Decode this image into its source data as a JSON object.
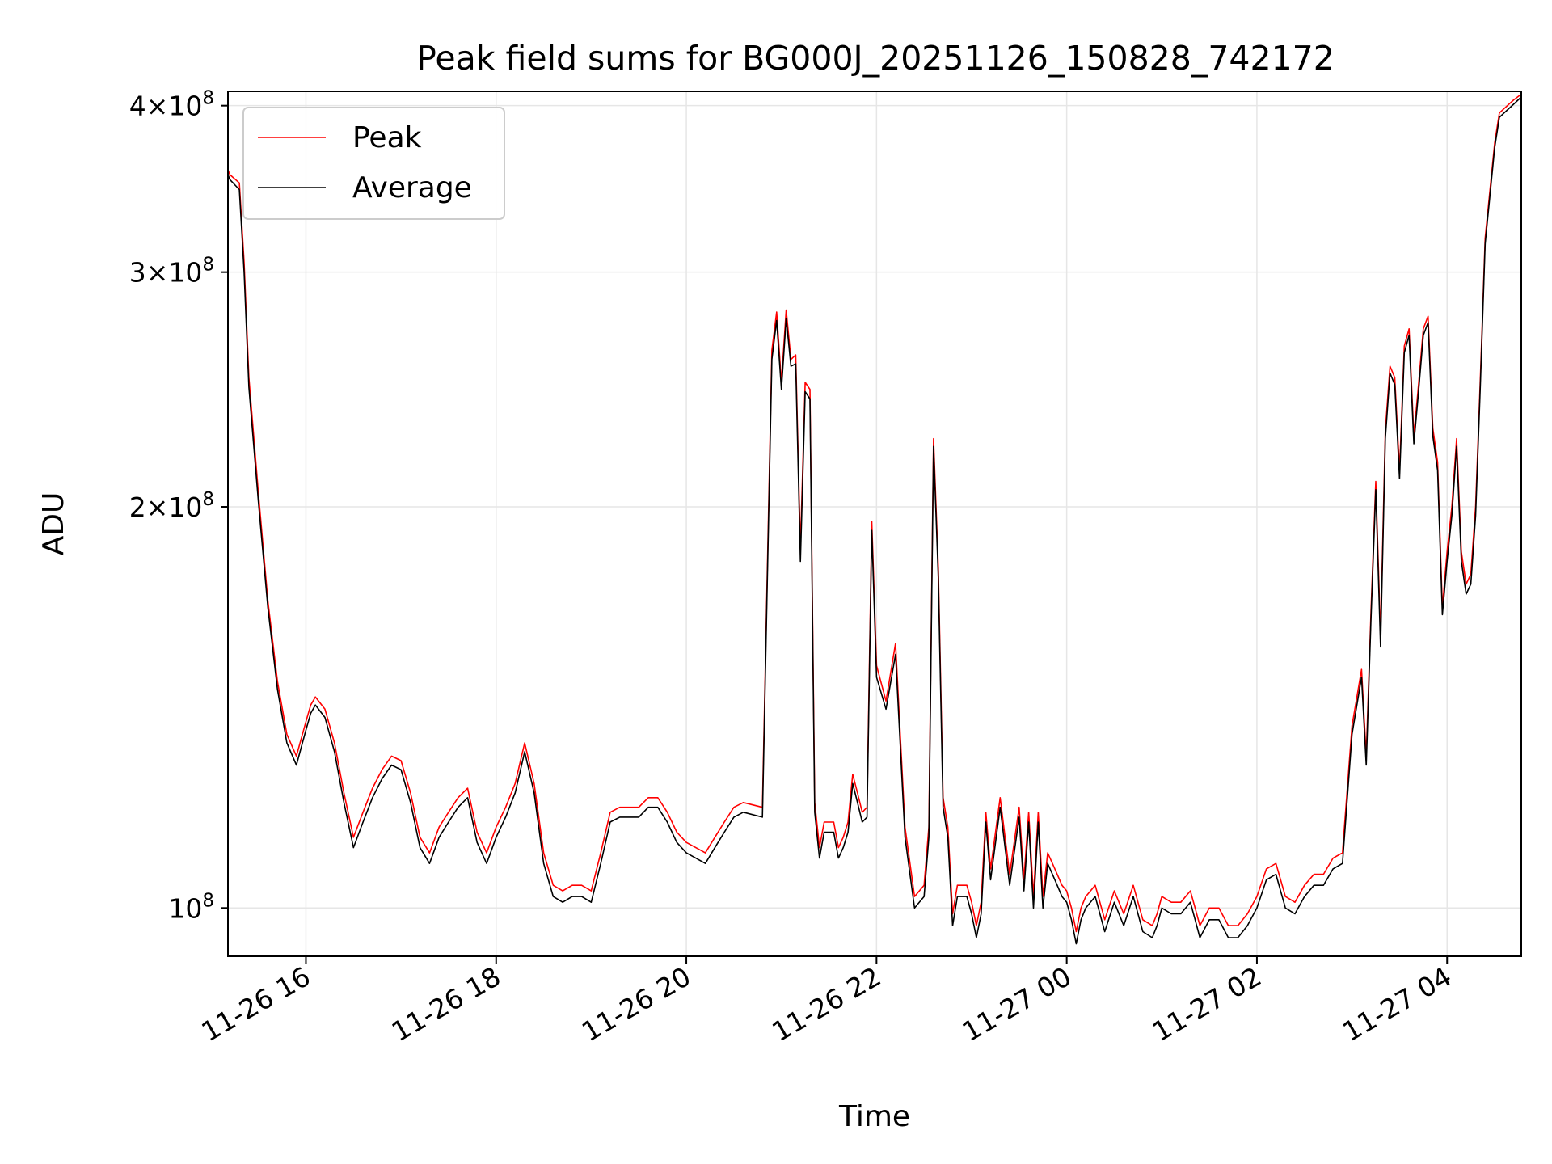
{
  "colors": {
    "peak": "#ff0000",
    "average": "#000000",
    "grid": "#e6e6e6"
  },
  "chart_data": {
    "type": "line",
    "title": "Peak field sums for BG000J_20251126_150828_742172",
    "xlabel": "Time",
    "ylabel": "ADU",
    "yscale": "log",
    "grid": true,
    "legend_position": "top-left",
    "xlim_hours": [
      15.18,
      28.78
    ],
    "ylim": [
      92000000,
      410000000
    ],
    "x_ticks": [
      {
        "hour": 16,
        "label": "11-26 16"
      },
      {
        "hour": 18,
        "label": "11-26 18"
      },
      {
        "hour": 20,
        "label": "11-26 20"
      },
      {
        "hour": 22,
        "label": "11-26 22"
      },
      {
        "hour": 24,
        "label": "11-27 00"
      },
      {
        "hour": 26,
        "label": "11-27 02"
      },
      {
        "hour": 28,
        "label": "11-27 04"
      }
    ],
    "y_ticks": [
      {
        "value": 100000000,
        "mantissa": "",
        "exp": "8"
      },
      {
        "value": 200000000,
        "mantissa": "2",
        "exp": "8"
      },
      {
        "value": 300000000,
        "mantissa": "3",
        "exp": "8"
      },
      {
        "value": 400000000,
        "mantissa": "4",
        "exp": "8"
      }
    ],
    "time_hours": [
      15.18,
      15.2,
      15.3,
      15.35,
      15.4,
      15.5,
      15.6,
      15.7,
      15.8,
      15.9,
      16.0,
      16.05,
      16.1,
      16.2,
      16.3,
      16.4,
      16.5,
      16.6,
      16.7,
      16.8,
      16.9,
      17.0,
      17.1,
      17.2,
      17.3,
      17.4,
      17.5,
      17.6,
      17.7,
      17.8,
      17.9,
      18.0,
      18.1,
      18.2,
      18.3,
      18.4,
      18.5,
      18.6,
      18.7,
      18.8,
      18.9,
      19.0,
      19.1,
      19.2,
      19.3,
      19.4,
      19.5,
      19.6,
      19.7,
      19.8,
      19.9,
      20.0,
      20.1,
      20.2,
      20.3,
      20.4,
      20.5,
      20.6,
      20.8,
      20.9,
      20.95,
      21.0,
      21.05,
      21.1,
      21.15,
      21.2,
      21.25,
      21.3,
      21.35,
      21.4,
      21.45,
      21.5,
      21.55,
      21.6,
      21.65,
      21.7,
      21.75,
      21.8,
      21.85,
      21.9,
      21.95,
      22.0,
      22.1,
      22.2,
      22.3,
      22.4,
      22.5,
      22.55,
      22.6,
      22.65,
      22.7,
      22.75,
      22.8,
      22.85,
      22.9,
      22.95,
      23.0,
      23.05,
      23.1,
      23.15,
      23.2,
      23.3,
      23.4,
      23.5,
      23.55,
      23.6,
      23.65,
      23.7,
      23.75,
      23.8,
      23.85,
      23.9,
      23.95,
      24.0,
      24.05,
      24.1,
      24.15,
      24.2,
      24.3,
      24.4,
      24.5,
      24.6,
      24.7,
      24.8,
      24.9,
      24.95,
      25.0,
      25.1,
      25.2,
      25.3,
      25.35,
      25.4,
      25.5,
      25.6,
      25.7,
      25.8,
      25.9,
      26.0,
      26.1,
      26.2,
      26.3,
      26.4,
      26.5,
      26.6,
      26.7,
      26.8,
      26.9,
      27.0,
      27.1,
      27.15,
      27.2,
      27.25,
      27.3,
      27.35,
      27.4,
      27.45,
      27.5,
      27.55,
      27.6,
      27.65,
      27.7,
      27.75,
      27.8,
      27.85,
      27.9,
      27.95,
      28.0,
      28.05,
      28.1,
      28.15,
      28.2,
      28.25,
      28.3,
      28.35,
      28.4,
      28.5,
      28.55,
      28.6,
      28.7,
      28.78
    ],
    "series": [
      {
        "name": "Peak",
        "values": [
          358,
          355,
          350,
          305,
          250,
          205,
          170,
          148,
          135,
          130,
          138,
          142,
          144,
          141,
          133,
          122,
          113,
          118,
          123,
          127,
          130,
          129,
          122,
          113,
          110,
          115,
          118,
          121,
          123,
          114,
          110,
          115,
          119,
          124,
          133,
          124,
          110,
          104,
          103,
          104,
          104,
          103,
          110,
          118,
          119,
          119,
          119,
          121,
          121,
          118,
          114,
          112,
          111,
          110,
          113,
          116,
          119,
          120,
          119,
          262,
          280,
          248,
          281,
          258,
          260,
          186,
          248,
          245,
          120,
          111,
          116,
          116,
          116,
          111,
          113,
          116,
          126,
          122,
          118,
          119,
          195,
          152,
          143,
          158,
          115,
          102,
          104,
          115,
          225,
          180,
          121,
          115,
          99,
          104,
          104,
          104,
          101,
          97,
          101,
          118,
          107,
          121,
          106,
          119,
          105,
          118,
          102,
          118,
          102,
          110,
          108,
          106,
          104,
          103,
          100,
          96,
          100,
          102,
          104,
          98,
          103,
          99,
          104,
          98,
          97,
          99,
          102,
          101,
          101,
          103,
          100,
          97,
          100,
          100,
          97,
          97,
          99,
          102,
          107,
          108,
          102,
          101,
          104,
          106,
          106,
          109,
          110,
          137,
          151,
          130,
          167,
          209,
          160,
          228,
          255,
          250,
          213,
          264,
          272,
          226,
          247,
          272,
          278,
          229,
          216,
          168,
          185,
          200,
          225,
          185,
          175,
          178,
          200,
          250,
          318,
          375,
          395,
          398,
          404,
          408
        ]
      },
      {
        "name": "Average",
        "values": [
          355,
          352,
          346,
          300,
          246,
          202,
          168,
          146,
          133,
          128,
          136,
          140,
          142,
          139,
          131,
          120,
          111,
          116,
          121,
          125,
          128,
          127,
          120,
          111,
          108,
          113,
          116,
          119,
          121,
          112,
          108,
          113,
          117,
          122,
          131,
          122,
          108,
          102,
          101,
          102,
          102,
          101,
          108,
          116,
          117,
          117,
          117,
          119,
          119,
          116,
          112,
          110,
          109,
          108,
          111,
          114,
          117,
          118,
          117,
          258,
          276,
          245,
          277,
          255,
          256,
          182,
          244,
          241,
          118,
          109,
          114,
          114,
          114,
          109,
          111,
          114,
          124,
          120,
          116,
          117,
          192,
          149,
          141,
          155,
          113,
          100,
          102,
          113,
          222,
          177,
          119,
          113,
          97,
          102,
          102,
          102,
          99,
          95,
          99,
          116,
          105,
          119,
          104,
          117,
          103,
          116,
          100,
          116,
          100,
          108,
          106,
          104,
          102,
          101,
          98,
          94,
          98,
          100,
          102,
          96,
          101,
          97,
          102,
          96,
          95,
          97,
          100,
          99,
          99,
          101,
          98,
          95,
          98,
          98,
          95,
          95,
          97,
          100,
          105,
          106,
          100,
          99,
          102,
          104,
          104,
          107,
          108,
          135,
          149,
          128,
          165,
          206,
          157,
          225,
          252,
          247,
          210,
          261,
          269,
          223,
          244,
          269,
          275,
          226,
          213,
          166,
          182,
          197,
          222,
          182,
          172,
          175,
          197,
          247,
          315,
          372,
          392,
          395,
          401,
          406
        ]
      }
    ],
    "values_unit_multiplier": 1000000,
    "legend": [
      {
        "name": "Peak",
        "label": "Peak"
      },
      {
        "name": "Average",
        "label": "Average"
      }
    ]
  }
}
